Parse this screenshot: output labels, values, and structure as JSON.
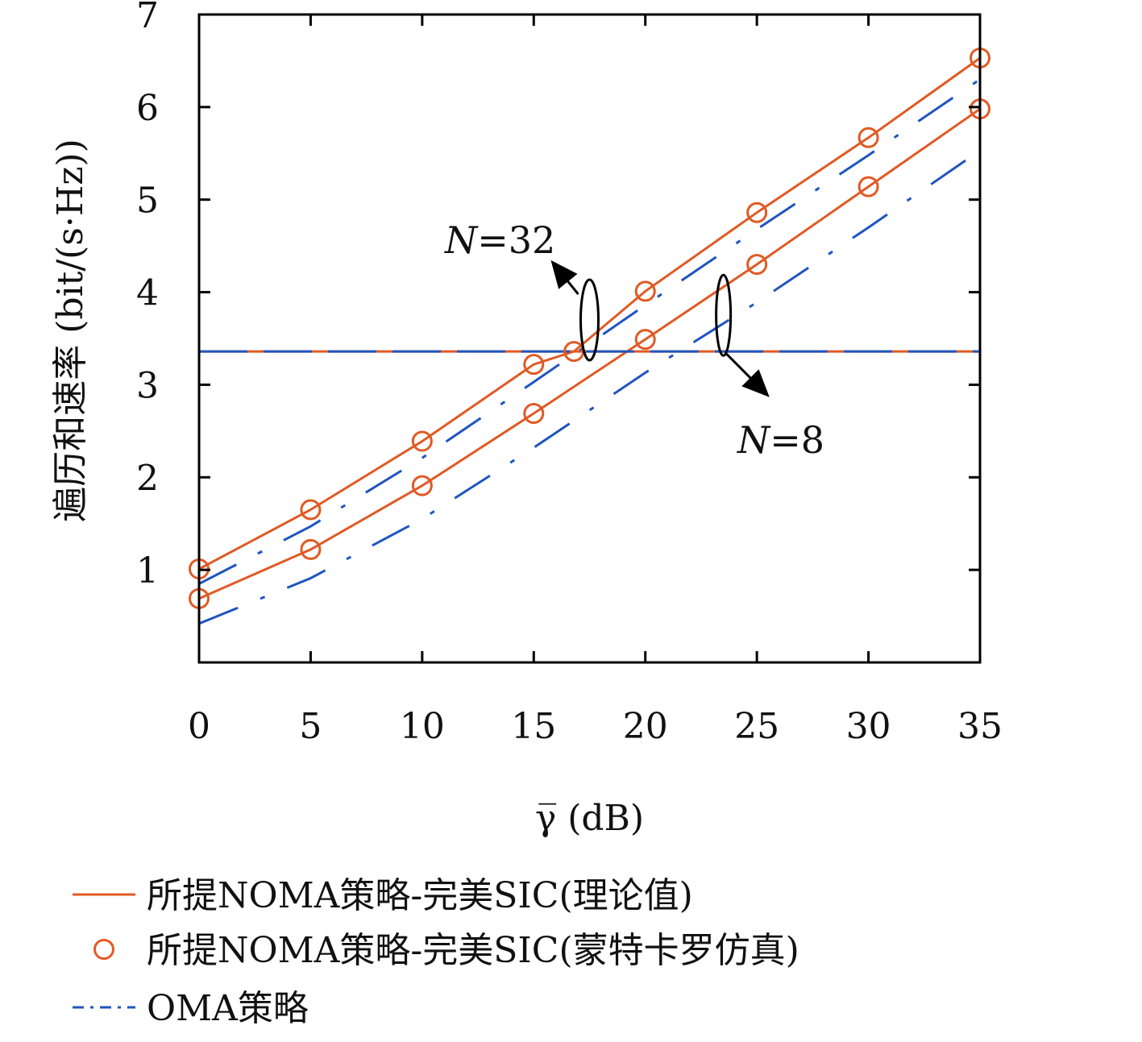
{
  "chart_data": {
    "type": "line",
    "xlabel": "γ̅ (dB)",
    "ylabel": "遍历和速率 (bit/(s·Hz))",
    "xlim": [
      0,
      35
    ],
    "ylim": [
      0,
      7
    ],
    "xticks": [
      0,
      5,
      10,
      15,
      20,
      25,
      30,
      35
    ],
    "yticks": [
      1,
      2,
      3,
      4,
      5,
      6,
      7
    ],
    "grid": false,
    "legend_position": "bottom",
    "colors": {
      "noma": "#e05a24",
      "oma": "#1f55c0"
    },
    "series": [
      {
        "name": "所提NOMA策略-完美SIC(理论值)",
        "group": "N=32",
        "style": "solid",
        "x": [
          0,
          5,
          10,
          15,
          16.8,
          20,
          25,
          30,
          35
        ],
        "y": [
          1.01,
          1.65,
          2.39,
          3.22,
          3.36,
          4.01,
          4.86,
          5.67,
          6.53
        ]
      },
      {
        "name": "所提NOMA策略-完美SIC(理论值)",
        "group": "N=8",
        "style": "solid",
        "x": [
          0,
          5,
          10,
          15,
          20,
          25,
          30,
          35
        ],
        "y": [
          0.69,
          1.22,
          1.91,
          2.69,
          3.49,
          4.3,
          5.14,
          5.98
        ]
      },
      {
        "name": "所提NOMA策略-完美SIC(蒙特卡罗仿真)",
        "group": "N=32",
        "style": "markers",
        "x": [
          0,
          5,
          10,
          15,
          16.8,
          20,
          25,
          30,
          35
        ],
        "y": [
          1.01,
          1.65,
          2.39,
          3.22,
          3.36,
          4.01,
          4.86,
          5.67,
          6.53
        ]
      },
      {
        "name": "所提NOMA策略-完美SIC(蒙特卡罗仿真)",
        "group": "N=8",
        "style": "markers",
        "x": [
          0,
          5,
          10,
          15,
          20,
          25,
          30,
          35
        ],
        "y": [
          0.69,
          1.22,
          1.91,
          2.69,
          3.49,
          4.3,
          5.14,
          5.98
        ]
      },
      {
        "name": "OMA策略",
        "group": "N=32",
        "style": "dashed",
        "x": [
          0,
          5,
          10,
          15,
          20,
          25,
          30,
          35
        ],
        "y": [
          0.85,
          1.47,
          2.21,
          3.03,
          3.86,
          4.68,
          5.48,
          6.3
        ]
      },
      {
        "name": "OMA策略",
        "group": "N=8",
        "style": "dashed",
        "x": [
          0,
          5,
          10,
          15,
          20,
          25,
          30,
          35
        ],
        "y": [
          0.42,
          0.91,
          1.55,
          2.32,
          3.13,
          3.89,
          4.7,
          5.53
        ]
      },
      {
        "name": "OMA策略",
        "group": "threshold",
        "style": "mixed-dashed",
        "x": [
          0,
          35
        ],
        "y": [
          3.36,
          3.36
        ]
      }
    ],
    "annotations": [
      {
        "text": "N=32",
        "italic_part": "N",
        "rest": "=32",
        "points_to_x": 17.5,
        "points_to_y": 3.7
      },
      {
        "text": "N=8",
        "italic_part": "N",
        "rest": "=8",
        "points_to_x": 23.5,
        "points_to_y": 3.75
      }
    ]
  },
  "legend": {
    "items": [
      {
        "label": "所提NOMA策略-完美SIC(理论值)",
        "marker": "solid-line"
      },
      {
        "label": "所提NOMA策略-完美SIC(蒙特卡罗仿真)",
        "marker": "circle"
      },
      {
        "label": "OMA策略",
        "marker": "dashed-line"
      }
    ]
  }
}
